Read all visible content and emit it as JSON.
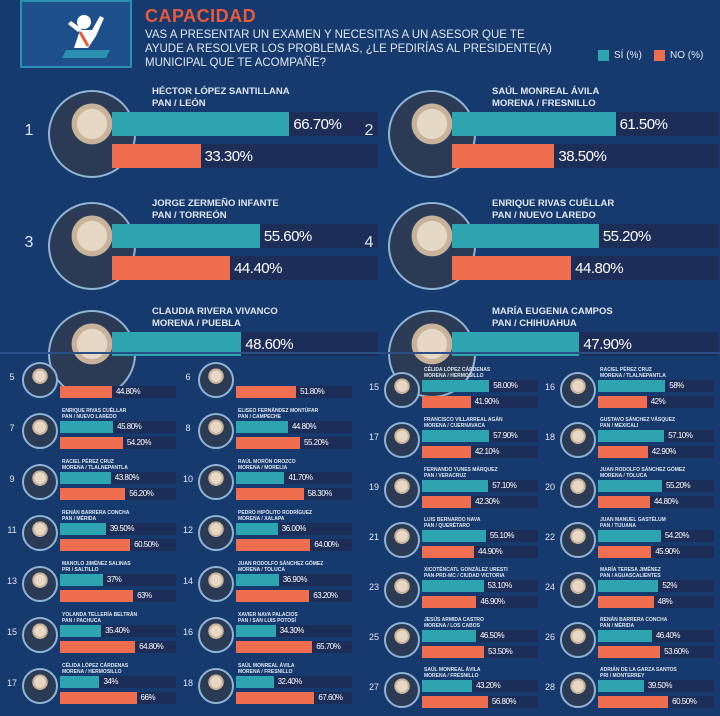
{
  "header": {
    "title": "CAPACIDAD",
    "question": "VAS A PRESENTAR UN EXAMEN Y NECESITAS A UN ASESOR QUE TE AYUDE A RESOLVER LOS PROBLEMAS, ¿LE PEDIRÍAS AL PRESIDENTE(A) MUNICIPAL QUE TE ACOMPAÑE?",
    "legend_yes": "SÍ (%)",
    "legend_no": "NO (%)"
  },
  "colors": {
    "background": "#173a6e",
    "yes": "#2ea4b0",
    "no": "#ef6e4f",
    "track": "#1c2d58",
    "title": "#e85a3c"
  },
  "chart_data": {
    "type": "bar",
    "title": "CAPACIDAD",
    "series_names": [
      "SÍ (%)",
      "NO (%)"
    ],
    "top": [
      {
        "rank": "1",
        "name": "HÉCTOR LÓPEZ SANTILLANA",
        "party": "PAN / LEÓN",
        "yes": 66.7,
        "no": 33.3,
        "yes_label": "66.70%",
        "no_label": "33.30%"
      },
      {
        "rank": "2",
        "name": "SAÚL MONREAL ÁVILA",
        "party": "MORENA / FRESNILLO",
        "yes": 61.5,
        "no": 38.5,
        "yes_label": "61.50%",
        "no_label": "38.50%"
      },
      {
        "rank": "3",
        "name": "JORGE ZERMEÑO INFANTE",
        "party": "PAN / TORREÓN",
        "yes": 55.6,
        "no": 44.4,
        "yes_label": "55.60%",
        "no_label": "44.40%"
      },
      {
        "rank": "4",
        "name": "ENRIQUE RIVAS CUÉLLAR",
        "party": "PAN / NUEVO LAREDO",
        "yes": 55.2,
        "no": 44.8,
        "yes_label": "55.20%",
        "no_label": "44.80%"
      },
      {
        "rank": "",
        "name": "CLAUDIA RIVERA VIVANCO",
        "party": "MORENA / PUEBLA",
        "yes": 48.6,
        "no": null,
        "yes_label": "48.60%",
        "no_label": ""
      },
      {
        "rank": "",
        "name": "MARÍA EUGENIA CAMPOS",
        "party": "PAN / CHIHUAHUA",
        "yes": 47.9,
        "no": null,
        "yes_label": "47.90%",
        "no_label": ""
      }
    ],
    "left": [
      {
        "rank": "5",
        "name": "",
        "party": "",
        "yes": null,
        "no": 44.8,
        "yes_label": "",
        "no_label": "44.80%"
      },
      {
        "rank": "6",
        "name": "",
        "party": "",
        "yes": null,
        "no": 51.8,
        "yes_label": "",
        "no_label": "51.80%"
      },
      {
        "rank": "7",
        "name": "ENRIQUE RIVAS CUÉLLAR",
        "party": "PAN / NUEVO LAREDO",
        "yes": 45.8,
        "no": 54.2,
        "yes_label": "45.80%",
        "no_label": "54.20%"
      },
      {
        "rank": "8",
        "name": "ELISEO FERNÁNDEZ MONTÚFAR",
        "party": "PAN / CAMPECHE",
        "yes": 44.8,
        "no": 55.2,
        "yes_label": "44.80%",
        "no_label": "55.20%"
      },
      {
        "rank": "9",
        "name": "RACIEL PÉREZ CRUZ",
        "party": "MORENA / TLALNEPANTLA",
        "yes": 43.8,
        "no": 56.2,
        "yes_label": "43.80%",
        "no_label": "56.20%"
      },
      {
        "rank": "10",
        "name": "RAÚL MORÓN OROZCO",
        "party": "MORENA / MORELIA",
        "yes": 41.7,
        "no": 58.3,
        "yes_label": "41.70%",
        "no_label": "58.30%"
      },
      {
        "rank": "11",
        "name": "RENÁN BARRERA CONCHA",
        "party": "PAN / MÉRIDA",
        "yes": 39.5,
        "no": 60.5,
        "yes_label": "39.50%",
        "no_label": "60.50%"
      },
      {
        "rank": "12",
        "name": "PEDRO HIPÓLITO RODRÍGUEZ",
        "party": "MORENA / XALAPA",
        "yes": 36.0,
        "no": 64.0,
        "yes_label": "36.00%",
        "no_label": "64.00%"
      },
      {
        "rank": "13",
        "name": "MANOLO JIMÉNEZ SALINAS",
        "party": "PRI / SALTILLO",
        "yes": 37,
        "no": 63,
        "yes_label": "37%",
        "no_label": "63%"
      },
      {
        "rank": "14",
        "name": "JUAN RODOLFO SÁNCHEZ GÓMEZ",
        "party": "MORENA / TOLUCA",
        "yes": 36.9,
        "no": 63.2,
        "yes_label": "36.90%",
        "no_label": "63.20%"
      },
      {
        "rank": "15",
        "name": "YOLANDA TELLERÍA BELTRÁN",
        "party": "PAN / PACHUCA",
        "yes": 35.4,
        "no": 64.8,
        "yes_label": "35.40%",
        "no_label": "64.80%"
      },
      {
        "rank": "16",
        "name": "XAVIER NAVA PALACIOS",
        "party": "PAN / SAN LUIS POTOSÍ",
        "yes": 34.3,
        "no": 65.7,
        "yes_label": "34.30%",
        "no_label": "65.70%"
      },
      {
        "rank": "17",
        "name": "CÉLIDA LÓPEZ CÁRDENAS",
        "party": "MORENA / HERMOSILLO",
        "yes": 34,
        "no": 66,
        "yes_label": "34%",
        "no_label": "66%"
      },
      {
        "rank": "18",
        "name": "SAÚL MONREAL ÁVILA",
        "party": "MORENA / FRESNILLO",
        "yes": 32.4,
        "no": 67.6,
        "yes_label": "32.40%",
        "no_label": "67.60%"
      }
    ],
    "right": [
      {
        "rank": "15",
        "name": "CÉLIDA LÓPEZ CÁRDENAS",
        "party": "MORENA / HERMOSILLO",
        "yes": 58.0,
        "no": 41.9,
        "yes_label": "58.00%",
        "no_label": "41.90%"
      },
      {
        "rank": "16",
        "name": "RACIEL PÉREZ CRUZ",
        "party": "MORENA / TLALNEPANTLA",
        "yes": 58,
        "no": 42,
        "yes_label": "58%",
        "no_label": "42%"
      },
      {
        "rank": "17",
        "name": "FRANCISCO VILLARREAL AGÁN",
        "party": "MORENA / CUERNAVACA",
        "yes": 57.9,
        "no": 42.1,
        "yes_label": "57.90%",
        "no_label": "42.10%"
      },
      {
        "rank": "18",
        "name": "GUSTAVO SÁNCHEZ VÁSQUEZ",
        "party": "PAN / MEXICALI",
        "yes": 57.1,
        "no": 42.9,
        "yes_label": "57.10%",
        "no_label": "42.90%"
      },
      {
        "rank": "19",
        "name": "FERNANDO YUNES MÁRQUEZ",
        "party": "PAN / VERACRUZ",
        "yes": 57.1,
        "no": 42.3,
        "yes_label": "57.10%",
        "no_label": "42.30%"
      },
      {
        "rank": "20",
        "name": "JUAN RODOLFO SÁNCHEZ GÓMEZ",
        "party": "MORENA / TOLUCA",
        "yes": 55.2,
        "no": 44.8,
        "yes_label": "55.20%",
        "no_label": "44.80%"
      },
      {
        "rank": "21",
        "name": "LUIS BERNARDO NAVA",
        "party": "PAN / QUERÉTARO",
        "yes": 55.1,
        "no": 44.9,
        "yes_label": "55.10%",
        "no_label": "44.90%"
      },
      {
        "rank": "22",
        "name": "JUAN MANUEL GASTÉLUM",
        "party": "PAN / TIJUANA",
        "yes": 54.2,
        "no": 45.9,
        "yes_label": "54.20%",
        "no_label": "45.90%"
      },
      {
        "rank": "23",
        "name": "XICOTÉNCATL GONZÁLEZ URESTI",
        "party": "PAN-PRD-MC / CIUDAD VICTORIA",
        "yes": 53.1,
        "no": 46.9,
        "yes_label": "53.10%",
        "no_label": "46.90%"
      },
      {
        "rank": "24",
        "name": "MARÍA TERESA JIMÉNEZ",
        "party": "PAN / AGUASCALIENTES",
        "yes": 52,
        "no": 48,
        "yes_label": "52%",
        "no_label": "48%"
      },
      {
        "rank": "25",
        "name": "JESÚS ARMIDA CASTRO",
        "party": "MORENA / LOS CABOS",
        "yes": 46.5,
        "no": 53.5,
        "yes_label": "46.50%",
        "no_label": "53.50%"
      },
      {
        "rank": "26",
        "name": "RENÁN BARRERA CONCHA",
        "party": "PAN / MÉRIDA",
        "yes": 46.4,
        "no": 53.6,
        "yes_label": "46.40%",
        "no_label": "53.60%"
      },
      {
        "rank": "27",
        "name": "SAÚL MONREAL ÁVILA",
        "party": "MORENA / FRESNILLO",
        "yes": 43.2,
        "no": 56.8,
        "yes_label": "43.20%",
        "no_label": "56.80%"
      },
      {
        "rank": "28",
        "name": "ADRIÁN DE LA GARZA SANTOS",
        "party": "PRI / MONTERREY",
        "yes": 39.5,
        "no": 60.5,
        "yes_label": "39.50%",
        "no_label": "60.50%"
      }
    ]
  }
}
